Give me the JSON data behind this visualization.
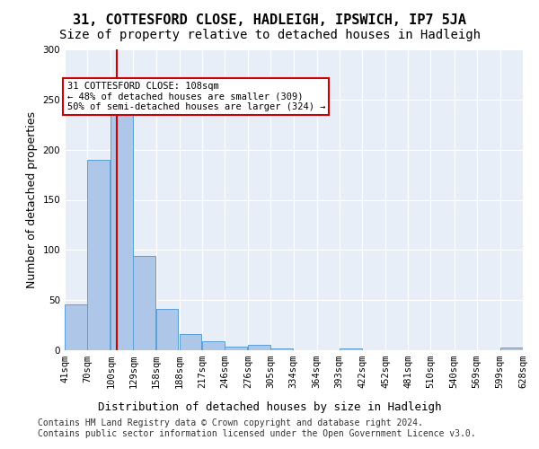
{
  "title": "31, COTTESFORD CLOSE, HADLEIGH, IPSWICH, IP7 5JA",
  "subtitle": "Size of property relative to detached houses in Hadleigh",
  "xlabel": "Distribution of detached houses by size in Hadleigh",
  "ylabel": "Number of detached properties",
  "bins": [
    41,
    70,
    100,
    129,
    158,
    188,
    217,
    246,
    276,
    305,
    334,
    364,
    393,
    422,
    452,
    481,
    510,
    540,
    569,
    599,
    628
  ],
  "counts": [
    46,
    190,
    248,
    94,
    41,
    16,
    9,
    4,
    5,
    2,
    0,
    0,
    2,
    0,
    0,
    0,
    0,
    0,
    0,
    3
  ],
  "bar_color": "#aec6e8",
  "bar_edge_color": "#5a9fd4",
  "property_size": 108,
  "vline_color": "#cc0000",
  "annotation_text": "31 COTTESFORD CLOSE: 108sqm\n← 48% of detached houses are smaller (309)\n50% of semi-detached houses are larger (324) →",
  "annotation_box_color": "#ffffff",
  "annotation_box_edge": "#cc0000",
  "footer": "Contains HM Land Registry data © Crown copyright and database right 2024.\nContains public sector information licensed under the Open Government Licence v3.0.",
  "ylim": [
    0,
    300
  ],
  "bg_color": "#e8eef7",
  "title_fontsize": 11,
  "subtitle_fontsize": 10,
  "axis_label_fontsize": 9,
  "tick_fontsize": 7.5,
  "footer_fontsize": 7
}
